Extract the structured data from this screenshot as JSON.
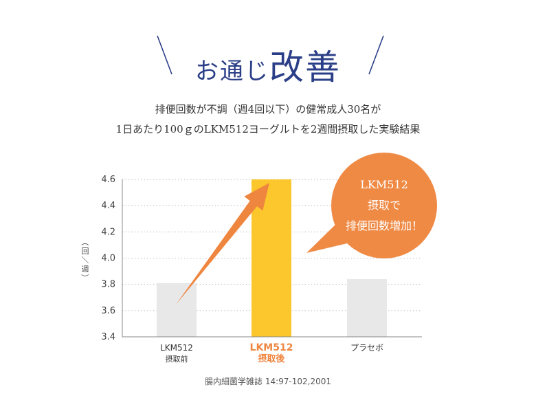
{
  "header": {
    "title_prefix": "お通じ",
    "title_main": "改善"
  },
  "description": {
    "line1": "排便回数が不調（週4回以下）の健常成人30名が",
    "line2": "1日あたり100ｇのLKM512ヨーグルトを2週間摂取した実験結果"
  },
  "callout": {
    "line1": "LKM512",
    "line2": "摂取で",
    "line3": "排便回数増加！"
  },
  "footnote": "腸内細菌学雑誌 14:97-102,2001",
  "colors": {
    "title": "#2b3f88",
    "highlight_bar": "#fcc72c",
    "gray_bar": "#e8e8e8",
    "accent": "#ef8640",
    "callout": "#ef8a45"
  },
  "chart_data": {
    "type": "bar",
    "ylabel": "（回／週）",
    "ylim": [
      3.4,
      4.6
    ],
    "yticks": [
      "3.4",
      "3.6",
      "3.8",
      "4.0",
      "4.2",
      "4.4",
      "4.6"
    ],
    "grid": "dotted horizontal",
    "categories": [
      {
        "line1": "LKM512",
        "line2": "摂取前",
        "highlight": false
      },
      {
        "line1": "LKM512",
        "line2": "摂取後",
        "highlight": true
      },
      {
        "line1": "プラセボ",
        "line2": "",
        "highlight": false
      }
    ],
    "values": [
      3.81,
      4.6,
      3.84
    ]
  }
}
